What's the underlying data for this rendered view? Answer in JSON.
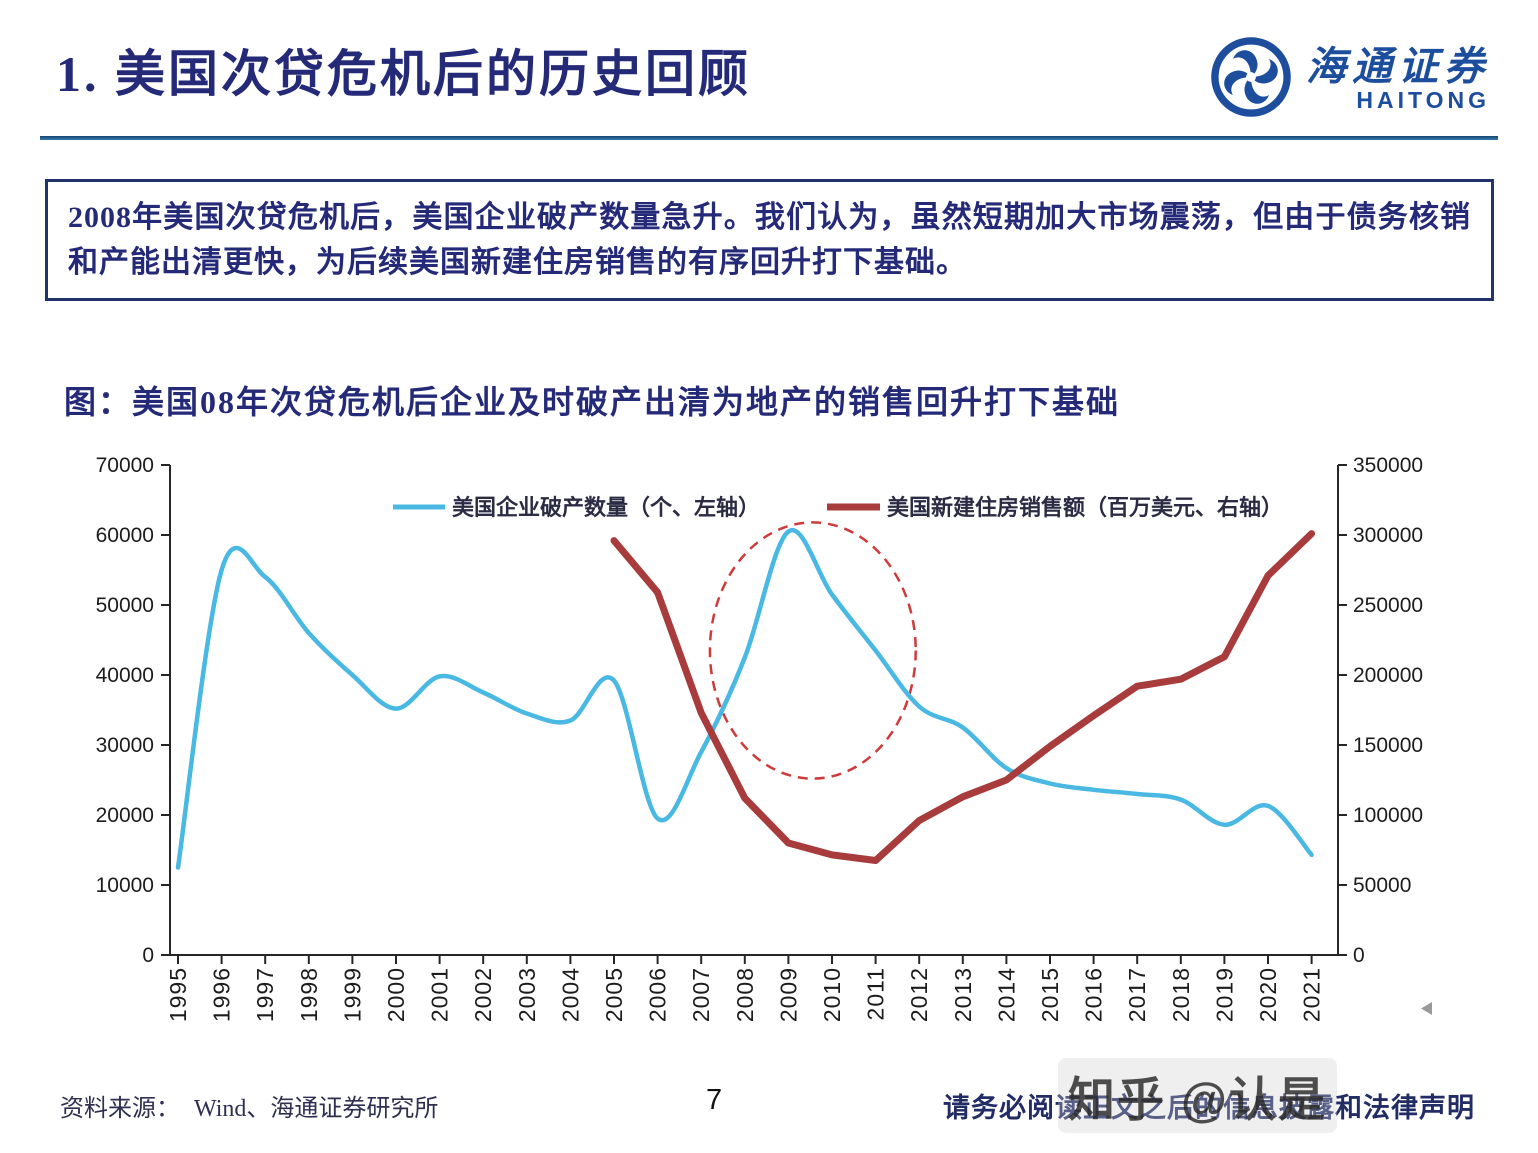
{
  "header": {
    "title": "1. 美国次贷危机后的历史回顾",
    "logo": {
      "name_cn": "海通证券",
      "name_en": "HAITONG"
    }
  },
  "summary_box": {
    "text": "2008年美国次贷危机后，美国企业破产数量急升。我们认为，虽然短期加大市场震荡，但由于债务核销和产能出清更快，为后续美国新建住房销售的有序回升打下基础。"
  },
  "figure": {
    "title": "图：美国08年次贷危机后企业及时破产出清为地产的销售回升打下基础"
  },
  "chart_data": {
    "type": "line",
    "categories": [
      "1995",
      "1996",
      "1997",
      "1998",
      "1999",
      "2000",
      "2001",
      "2002",
      "2003",
      "2004",
      "2005",
      "2006",
      "2007",
      "2008",
      "2009",
      "2010",
      "2011",
      "2012",
      "2013",
      "2014",
      "2015",
      "2016",
      "2017",
      "2018",
      "2019",
      "2020",
      "2021"
    ],
    "series": [
      {
        "name": "美国企业破产数量（个、左轴）",
        "axis": "left",
        "color": "#49b8e2",
        "smooth": true,
        "width": 4.5,
        "values": [
          12500,
          55000,
          54000,
          46000,
          40000,
          35200,
          39800,
          37500,
          34500,
          33500,
          39200,
          19500,
          29000,
          42500,
          60500,
          51500,
          43500,
          35500,
          32500,
          26700,
          24500,
          23600,
          23000,
          22200,
          18600,
          21300,
          14300
        ]
      },
      {
        "name": "美国新建住房销售额（百万美元、右轴）",
        "axis": "right",
        "color": "#a83b3b",
        "smooth": false,
        "width": 7,
        "values": [
          null,
          null,
          null,
          null,
          null,
          null,
          null,
          null,
          null,
          null,
          296000,
          259000,
          173000,
          112000,
          80000,
          71500,
          67500,
          96000,
          113000,
          125000,
          149000,
          171000,
          192000,
          197000,
          213000,
          271000,
          301000
        ]
      }
    ],
    "left_axis": {
      "min": 0,
      "max": 70000,
      "step": 10000
    },
    "right_axis": {
      "min": 0,
      "max": 350000,
      "step": 50000
    },
    "grid": false,
    "legend_position": "top-center",
    "annotation_ellipse": {
      "center_year": 2009.56,
      "center_value_left": 43500,
      "radius_years": 2.36,
      "radius_value_left": 18300,
      "color": "#cf3a3a",
      "style": "dashed"
    }
  },
  "footer": {
    "source_label": "资料来源：",
    "source": "Wind、海通证券研究所",
    "page_number": "7",
    "disclaimer": "请务必阅读正文之后的信息披露和法律声明",
    "watermark": "知乎 @认是"
  },
  "misc": {
    "corner_marker_icon": "left-triangle"
  },
  "palette": {
    "navy": "#242a78",
    "rule_blue": "#2d6da8",
    "logo_blue": "#1d4e9e",
    "axis": "#262626",
    "ellipse_red": "#cf3a3a"
  }
}
